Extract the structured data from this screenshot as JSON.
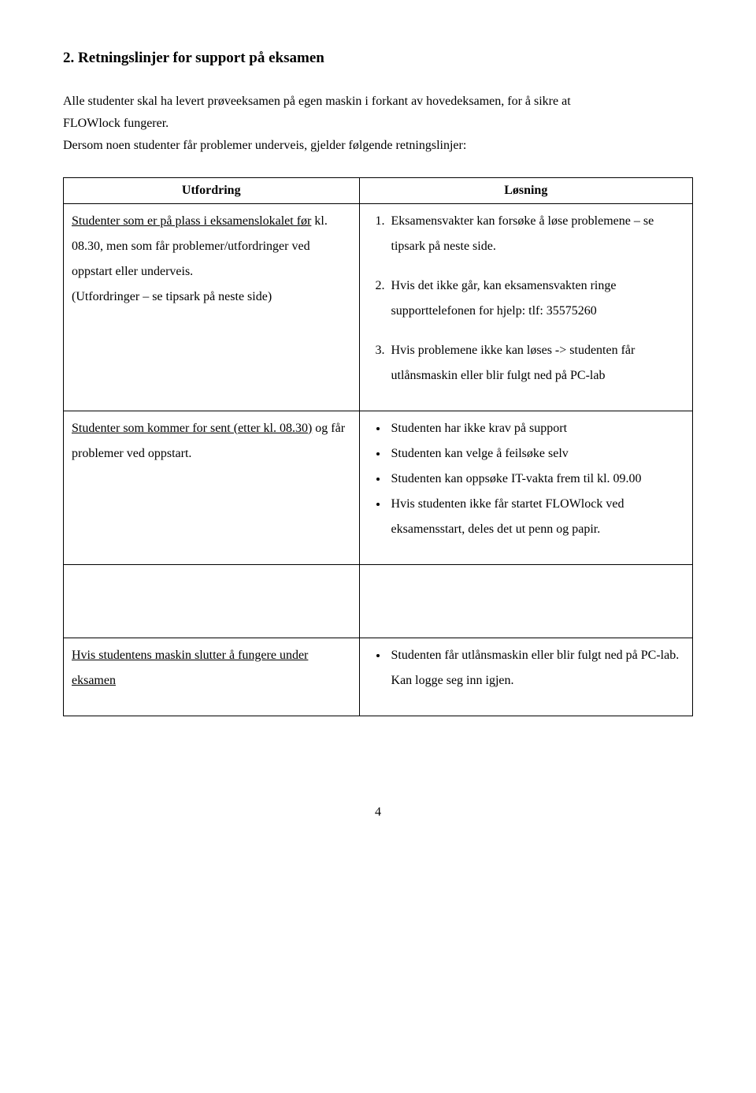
{
  "heading": "2. Retningslinjer for support på eksamen",
  "intro_line1": "Alle studenter skal ha levert prøveeksamen på egen maskin i forkant av hovedeksamen, for å sikre at",
  "intro_line2": "FLOWlock fungerer.",
  "intro_line3": "Dersom noen studenter får problemer underveis, gjelder følgende retningslinjer:",
  "table": {
    "header_left": "Utfordring",
    "header_right": "Løsning",
    "row1": {
      "left_underline": "Studenter som er på plass i eksamenslokalet før",
      "left_rest": "kl. 08.30, men som får problemer/utfordringer ved oppstart eller underveis.",
      "left_paren": "(Utfordringer – se tipsark på neste side)",
      "right_items": [
        "Eksamensvakter kan forsøke å løse problemene – se tipsark på neste side.",
        "Hvis det ikke går, kan eksamensvakten ringe supporttelefonen for hjelp: tlf: 35575260",
        "Hvis problemene ikke kan løses -> studenten får utlånsmaskin eller blir fulgt ned på PC-lab"
      ]
    },
    "row2": {
      "left_underline": "Studenter som kommer for sent (etter kl. 08.30)",
      "left_rest": "og får problemer ved oppstart.",
      "right_items": [
        "Studenten har ikke krav på support",
        "Studenten kan velge å feilsøke selv",
        "Studenten kan oppsøke IT-vakta frem til kl. 09.00",
        "Hvis studenten ikke får startet FLOWlock ved eksamensstart, deles det ut penn og papir."
      ]
    },
    "row3": {
      "left_underline": "Hvis studentens maskin slutter å fungere under eksamen",
      "right_items": [
        "Studenten får utlånsmaskin eller blir fulgt ned på PC-lab. Kan logge seg inn igjen."
      ]
    }
  },
  "page_number": "4"
}
